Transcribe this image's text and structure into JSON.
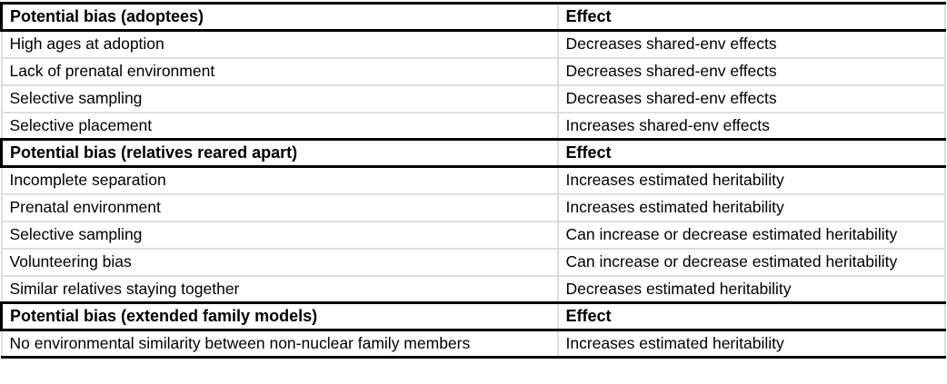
{
  "table": {
    "columns": {
      "bias": "Potential bias",
      "effect": "Effect"
    },
    "colors": {
      "grid_line": "#dedede",
      "section_border": "#000000",
      "text": "#000000",
      "background": "#ffffff"
    },
    "sections": [
      {
        "header": {
          "bias": "Potential bias (adoptees)",
          "effect": "Effect"
        },
        "rows": [
          {
            "bias": "High ages at adoption",
            "effect": "Decreases shared-env effects"
          },
          {
            "bias": "Lack of prenatal environment",
            "effect": "Decreases shared-env effects"
          },
          {
            "bias": "Selective sampling",
            "effect": "Decreases shared-env effects"
          },
          {
            "bias": "Selective placement",
            "effect": "Increases shared-env effects"
          }
        ]
      },
      {
        "header": {
          "bias": "Potential bias (relatives reared apart)",
          "effect": "Effect"
        },
        "rows": [
          {
            "bias": "Incomplete separation",
            "effect": "Increases estimated heritability"
          },
          {
            "bias": "Prenatal environment",
            "effect": "Increases estimated heritability"
          },
          {
            "bias": "Selective sampling",
            "effect": "Can increase or decrease estimated heritability"
          },
          {
            "bias": "Volunteering bias",
            "effect": "Can increase or decrease estimated heritability"
          },
          {
            "bias": "Similar relatives staying together",
            "effect": "Decreases estimated heritability"
          }
        ]
      },
      {
        "header": {
          "bias": "Potential bias (extended family models)",
          "effect": "Effect"
        },
        "rows": [
          {
            "bias": "No environmental similarity between non-nuclear family members",
            "effect": "Increases estimated heritability"
          }
        ]
      }
    ]
  }
}
